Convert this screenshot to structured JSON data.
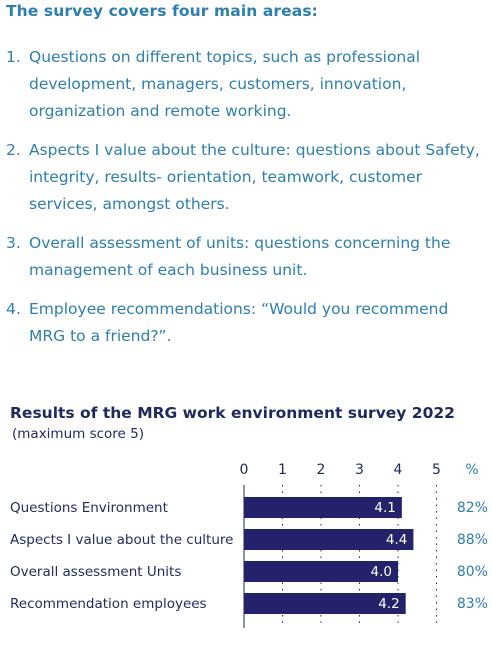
{
  "intro": {
    "heading": "The survey covers four main areas:",
    "items": [
      {
        "number": "1.",
        "text": "Questions on different topics, such as professional development, managers, customers, innovation, organization and remote working."
      },
      {
        "number": "2.",
        "text": "Aspects I value about the culture: questions about Safety, integrity, results- orientation, teamwork, customer services, amongst others."
      },
      {
        "number": "3.",
        "text": "Overall assessment of units: questions concerning the management of each business unit."
      },
      {
        "number": "4.",
        "text": "Employee recommendations: “Would you recommend MRG to a friend?”."
      }
    ]
  },
  "colors": {
    "text_blue": "#2e7fae",
    "navy": "#1e2a5e",
    "bar": "#24226a"
  },
  "chart_data": {
    "type": "bar",
    "orientation": "horizontal",
    "title": "Results of the MRG work environment survey 2022",
    "subtitle": "(maximum score 5)",
    "categories": [
      "Questions Environment",
      "Aspects I value about the culture",
      "Overall assessment Units",
      "Recommendation employees"
    ],
    "values": [
      4.1,
      4.4,
      4.0,
      4.2
    ],
    "value_labels": [
      "4.1",
      "4.4",
      "4.0",
      "4.2"
    ],
    "percentages": [
      "82%",
      "88%",
      "80%",
      "83%"
    ],
    "percent_header": "%",
    "ticks": [
      0,
      1,
      2,
      3,
      4,
      5
    ],
    "xlim": [
      0,
      5
    ],
    "grid": "dotted vertical",
    "axis_position": "top"
  }
}
